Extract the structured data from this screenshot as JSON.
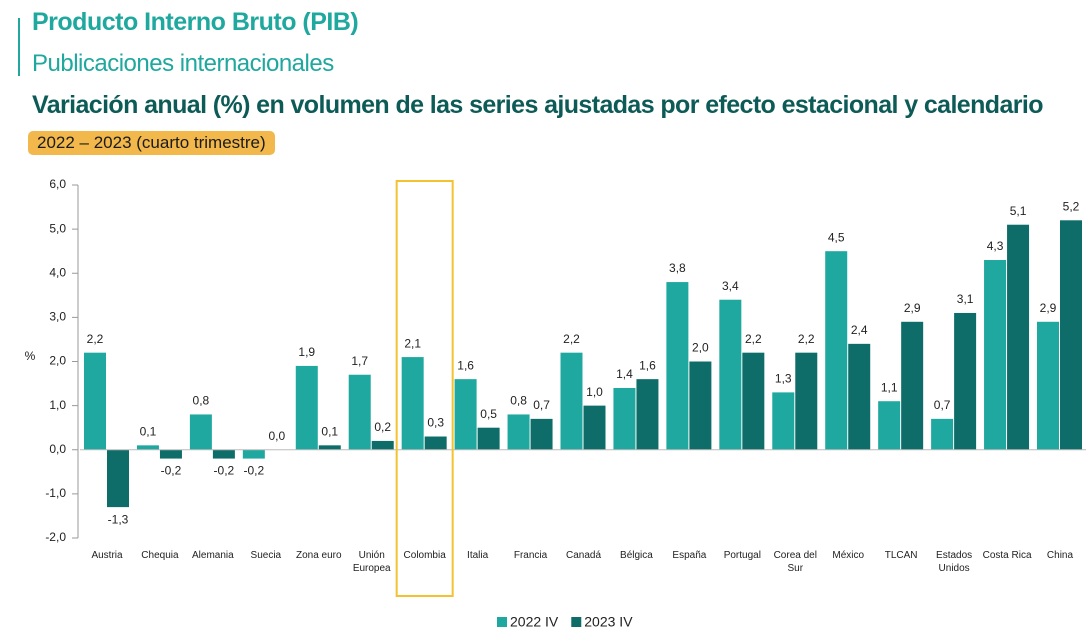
{
  "chart_data": {
    "type": "bar",
    "title": "Producto Interno Bruto (PIB)",
    "subtitle": "Publicaciones internacionales",
    "headline": "Variación anual (%) en volumen de las series ajustadas por efecto estacional y calendario",
    "period": "2022 – 2023 (cuarto trimestre)",
    "ylabel": "%",
    "categories": [
      "Austria",
      "Chequia",
      "Alemania",
      "Suecia",
      "Zona euro",
      "Unión Europea",
      "Colombia",
      "Italia",
      "Francia",
      "Canadá",
      "Bélgica",
      "España",
      "Portugal",
      "Corea del Sur",
      "México",
      "TLCAN",
      "Estados Unidos",
      "Costa Rica",
      "China"
    ],
    "series": [
      {
        "name": "2022 IV",
        "color": "#1fa89f",
        "values": [
          2.2,
          0.1,
          0.8,
          -0.2,
          1.9,
          1.7,
          2.1,
          1.6,
          0.8,
          2.2,
          1.4,
          3.8,
          3.4,
          1.3,
          4.5,
          1.1,
          0.7,
          4.3,
          2.9
        ],
        "value_labels": [
          "2,2",
          "0,1",
          "0,8",
          "-0,2",
          "1,9",
          "1,7",
          "2,1",
          "1,6",
          "0,8",
          "2,2",
          "1,4",
          "3,8",
          "3,4",
          "1,3",
          "4,5",
          "1,1",
          "0,7",
          "4,3",
          "2,9"
        ]
      },
      {
        "name": "2023 IV",
        "color": "#0f6d69",
        "values": [
          -1.3,
          -0.2,
          -0.2,
          0.0,
          0.1,
          0.2,
          0.3,
          0.5,
          0.7,
          1.0,
          1.6,
          2.0,
          2.2,
          2.2,
          2.4,
          2.9,
          3.1,
          5.1,
          5.2
        ],
        "value_labels": [
          "-1,3",
          "-0,2",
          "-0,2",
          "0,0",
          "0,1",
          "0,2",
          "0,3",
          "0,5",
          "0,7",
          "1,0",
          "1,6",
          "2,0",
          "2,2",
          "2,2",
          "2,4",
          "2,9",
          "3,1",
          "5,1",
          "5,2"
        ]
      }
    ],
    "ylim": [
      -2,
      6
    ],
    "yticks": [
      {
        "value": -2,
        "label": "-2,0"
      },
      {
        "value": -1,
        "label": "-1,0"
      },
      {
        "value": 0,
        "label": "0,0"
      },
      {
        "value": 1,
        "label": "1,0"
      },
      {
        "value": 2,
        "label": "2,0"
      },
      {
        "value": 3,
        "label": "3,0"
      },
      {
        "value": 4,
        "label": "4,0"
      },
      {
        "value": 5,
        "label": "5,0"
      },
      {
        "value": 6,
        "label": "6,0"
      }
    ],
    "grid": false,
    "legend": "bottom"
  }
}
